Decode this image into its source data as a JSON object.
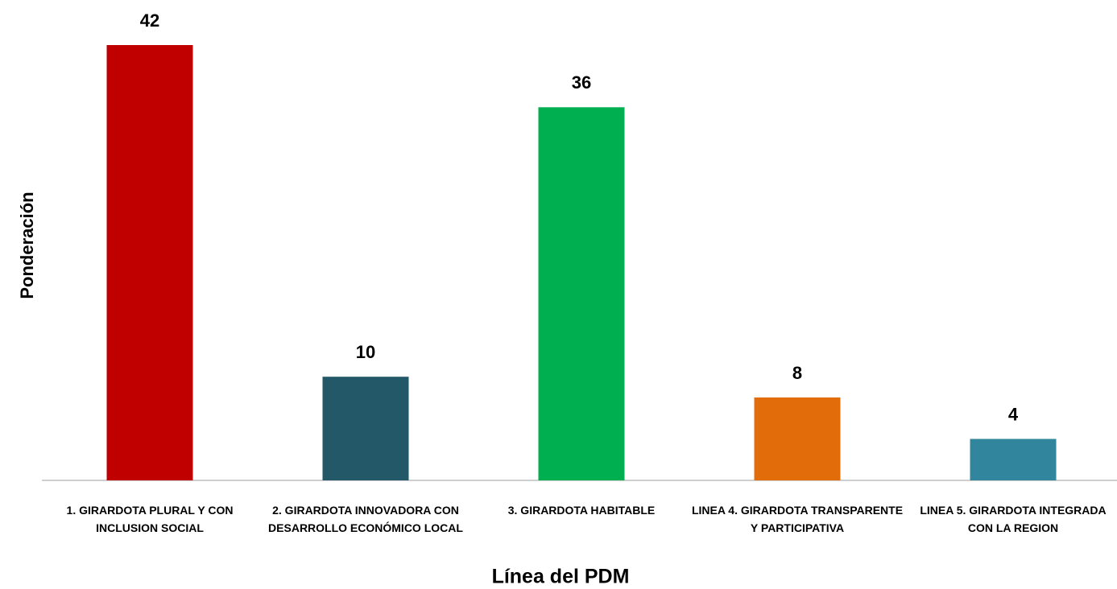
{
  "chart_data": {
    "type": "bar",
    "x_label": "Línea del PDM",
    "y_label": "Ponderación",
    "categories": [
      "1. GIRARDOTA PLURAL Y CON INCLUSION SOCIAL",
      "2. GIRARDOTA INNOVADORA CON DESARROLLO ECONÓMICO LOCAL",
      "3. GIRARDOTA HABITABLE",
      "LINEA 4. GIRARDOTA TRANSPARENTE Y PARTICIPATIVA",
      "LINEA 5. GIRARDOTA INTEGRADA CON LA REGION"
    ],
    "values": [
      42,
      10,
      36,
      8,
      4
    ],
    "colors": [
      "#c00000",
      "#235868",
      "#00b050",
      "#e36c0a",
      "#31859c"
    ],
    "grid": false
  }
}
